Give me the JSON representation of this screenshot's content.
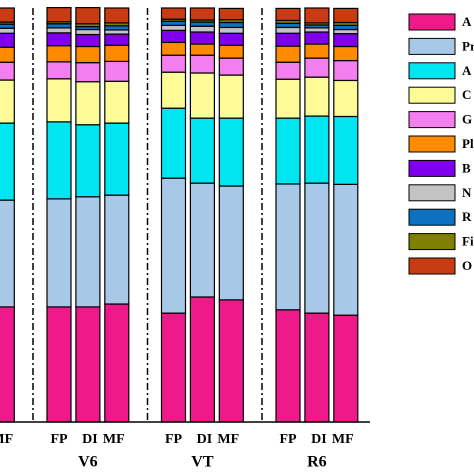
{
  "chart_data": {
    "type": "stacked_bar",
    "categories": [
      "MF",
      "FP",
      "DI",
      "MF",
      "FP",
      "DI",
      "MF",
      "FP",
      "DI",
      "MF"
    ],
    "category_groups": [
      null,
      "V6",
      "V6",
      "V6",
      "VT",
      "VT",
      "VT",
      "R6",
      "R6",
      "R6"
    ],
    "ylim": [
      0,
      100
    ],
    "series": [
      {
        "name": "A",
        "color": "#ee1a8a",
        "values": [
          27.8,
          27.8,
          27.8,
          28.5,
          26.3,
          30.2,
          29.5,
          27.1,
          26.3,
          25.8
        ]
      },
      {
        "name": "Pr",
        "color": "#a8c8e8",
        "values": [
          25.8,
          26.1,
          26.6,
          26.3,
          32.6,
          27.5,
          27.5,
          30.4,
          31.4,
          31.6
        ]
      },
      {
        "name": "A",
        "color": "#00e6f0",
        "values": [
          18.6,
          18.6,
          17.4,
          17.4,
          16.9,
          15.7,
          16.4,
          15.9,
          16.2,
          16.4
        ]
      },
      {
        "name": "C",
        "color": "#fdfb98",
        "values": [
          10.4,
          10.4,
          10.4,
          10.1,
          8.7,
          10.9,
          10.4,
          9.4,
          9.4,
          8.7
        ]
      },
      {
        "name": "G",
        "color": "#f27ef0",
        "values": [
          4.3,
          4.1,
          4.6,
          4.8,
          4.1,
          4.3,
          4.1,
          4.1,
          4.6,
          4.8
        ]
      },
      {
        "name": "Pl",
        "color": "#ff8a00",
        "values": [
          3.6,
          3.9,
          3.9,
          3.9,
          3.1,
          2.7,
          3.1,
          3.9,
          3.4,
          3.4
        ]
      },
      {
        "name": "B",
        "color": "#8000ee",
        "values": [
          3.4,
          3.1,
          2.9,
          2.7,
          2.9,
          2.9,
          2.9,
          3.1,
          2.9,
          3.1
        ]
      },
      {
        "name": "N",
        "color": "#c4c4c4",
        "values": [
          1.2,
          1.2,
          1.2,
          1.0,
          1.2,
          1.4,
          1.4,
          1.4,
          1.0,
          1.0
        ]
      },
      {
        "name": "R",
        "color": "#0a72c0",
        "values": [
          1.0,
          1.0,
          0.7,
          1.0,
          1.0,
          1.0,
          1.2,
          1.0,
          0.7,
          1.0
        ]
      },
      {
        "name": "Fi",
        "color": "#808000",
        "values": [
          0.5,
          0.5,
          0.7,
          0.7,
          0.5,
          0.5,
          0.7,
          0.7,
          0.5,
          0.7
        ]
      },
      {
        "name": "O",
        "color": "#c83c14",
        "values": [
          3.4,
          3.4,
          3.9,
          3.6,
          2.7,
          2.9,
          2.7,
          2.9,
          3.6,
          3.4
        ]
      }
    ]
  }
}
